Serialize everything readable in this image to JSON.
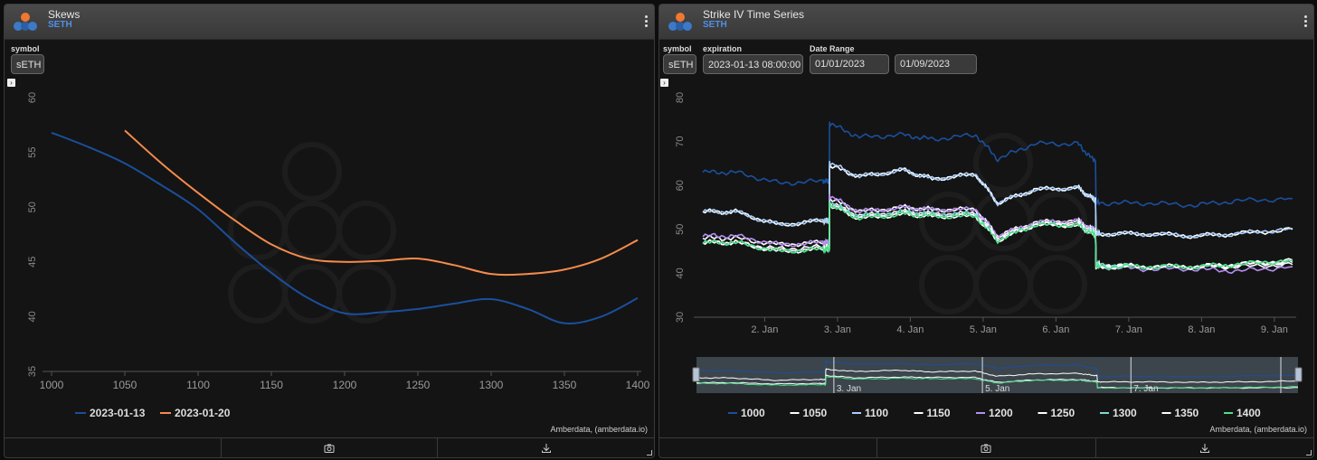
{
  "left_panel": {
    "title": "Skews",
    "subtitle": "SETH",
    "symbol_label": "symbol",
    "symbol_value": "sETH",
    "credit": "Amberdata, (amberdata.io)"
  },
  "right_panel": {
    "title": "Strike IV Time Series",
    "subtitle": "SETH",
    "symbol_label": "symbol",
    "symbol_value": "sETH",
    "expiration_label": "expiration",
    "expiration_value": "2023-01-13 08:00:00",
    "date_range_label": "Date Range",
    "date_from": "01/01/2023",
    "date_to": "01/09/2023",
    "credit": "Amberdata, (amberdata.io)",
    "navigator_labels": [
      "3. Jan",
      "5. Jan",
      "7. Jan"
    ]
  },
  "icons": {
    "logo": "amberdata-logo-icon",
    "menu": "kebab-menu-icon",
    "camera": "camera-icon",
    "download": "download-icon",
    "expander": "chevron-right-icon"
  },
  "colors": {
    "blue_series": "#1b4f9c",
    "orange_series": "#f58b4c",
    "header_subtitle": "#4f8fe8"
  },
  "chart_data": [
    {
      "type": "line",
      "title": "",
      "xlabel": "",
      "ylabel": "",
      "xlim": [
        1000,
        1400
      ],
      "ylim": [
        35,
        60
      ],
      "x_ticks": [
        1000,
        1050,
        1100,
        1150,
        1200,
        1250,
        1300,
        1350,
        1400
      ],
      "y_ticks": [
        35,
        40,
        45,
        50,
        55,
        60
      ],
      "grid": false,
      "legend": "bottom",
      "series": [
        {
          "name": "2023-01-13",
          "color": "#1b4f9c",
          "x": [
            1000,
            1025,
            1050,
            1075,
            1100,
            1125,
            1150,
            1175,
            1200,
            1225,
            1250,
            1275,
            1300,
            1325,
            1350,
            1375,
            1400
          ],
          "y": [
            56.8,
            55.5,
            54.0,
            52.0,
            49.8,
            46.8,
            44.0,
            41.7,
            40.3,
            40.4,
            40.7,
            41.2,
            41.6,
            40.7,
            39.4,
            40.0,
            41.7
          ]
        },
        {
          "name": "2023-01-20",
          "color": "#f58b4c",
          "x": [
            1050,
            1075,
            1100,
            1125,
            1150,
            1175,
            1200,
            1225,
            1250,
            1275,
            1300,
            1325,
            1350,
            1375,
            1400
          ],
          "y": [
            57.0,
            54.0,
            51.3,
            48.8,
            46.6,
            45.3,
            45.0,
            45.1,
            45.3,
            44.7,
            43.9,
            43.9,
            44.3,
            45.3,
            47.0
          ]
        }
      ]
    },
    {
      "type": "line",
      "title": "",
      "xlabel": "",
      "ylabel": "",
      "xlim": [
        1.15,
        9.25
      ],
      "ylim": [
        30,
        80
      ],
      "x_ticks": [
        2,
        3,
        4,
        5,
        6,
        7,
        8,
        9
      ],
      "x_tick_labels": [
        "2. Jan",
        "3. Jan",
        "4. Jan",
        "5. Jan",
        "6. Jan",
        "7. Jan",
        "8. Jan",
        "9. Jan"
      ],
      "y_ticks": [
        30,
        40,
        50,
        60,
        70,
        80
      ],
      "grid": false,
      "legend": "bottom",
      "series": [
        {
          "name": "1000",
          "color": "#1b4f9c",
          "x": [
            1.15,
            1.6,
            2.2,
            2.8,
            2.88,
            2.9,
            3.3,
            3.9,
            4.3,
            4.9,
            5.2,
            5.7,
            6.3,
            6.5,
            6.6,
            7.2,
            7.9,
            8.5,
            9.25
          ],
          "y": [
            63,
            63,
            60.5,
            61,
            61,
            74,
            71,
            71.5,
            70.5,
            71.5,
            66,
            69.5,
            69.5,
            66,
            56,
            56,
            55.5,
            56.5,
            57
          ]
        },
        {
          "name": "1050",
          "color": "#ffffff",
          "x": [
            1.15,
            1.6,
            2.2,
            2.8,
            2.88,
            2.9,
            3.3,
            3.9,
            4.3,
            4.9,
            5.2,
            5.7,
            6.3,
            6.5,
            6.6,
            7.2,
            7.9,
            8.5,
            9.25
          ],
          "y": [
            54,
            54,
            51,
            52,
            52,
            64.5,
            62,
            63.5,
            61.5,
            62.5,
            56,
            59,
            59.5,
            57,
            49,
            49,
            48.5,
            49,
            50
          ]
        },
        {
          "name": "1100",
          "color": "#a8cfff",
          "x": [
            1.15,
            1.6,
            2.2,
            2.8,
            2.88,
            2.9,
            3.3,
            3.9,
            4.3,
            4.9,
            5.2,
            5.7,
            6.3,
            6.5,
            6.6,
            7.2,
            7.9,
            8.5,
            9.25
          ],
          "y": [
            54,
            54,
            51,
            52,
            52,
            65,
            62,
            63.5,
            61.5,
            62.5,
            56,
            59,
            59.5,
            57,
            49,
            49,
            48.5,
            49,
            50.2
          ]
        },
        {
          "name": "1150",
          "color": "#ffffff",
          "x": [
            1.15,
            1.6,
            2.2,
            2.8,
            2.88,
            2.9,
            3.3,
            3.9,
            4.3,
            4.9,
            5.2,
            5.7,
            6.3,
            6.5,
            6.6,
            7.2,
            7.9,
            8.5,
            9.25
          ],
          "y": [
            48,
            48,
            46.5,
            47,
            47,
            57,
            54,
            55,
            54.5,
            54.5,
            48.5,
            51.5,
            52,
            50,
            42,
            41.5,
            41.5,
            41.5,
            42
          ]
        },
        {
          "name": "1200",
          "color": "#b68ef2",
          "x": [
            1.15,
            1.6,
            2.2,
            2.8,
            2.88,
            2.9,
            3.3,
            3.9,
            4.3,
            4.9,
            5.2,
            5.7,
            6.3,
            6.5,
            6.6,
            7.2,
            7.9,
            8.5,
            9.25
          ],
          "y": [
            48.5,
            48.5,
            46.5,
            47,
            47,
            57.5,
            54,
            55,
            54.5,
            54.5,
            48.5,
            51.5,
            52,
            50,
            41.5,
            41,
            41,
            40.5,
            41.5
          ]
        },
        {
          "name": "1250",
          "color": "#ffffff",
          "x": [
            1.15,
            1.6,
            2.2,
            2.8,
            2.88,
            2.9,
            3.3,
            3.9,
            4.3,
            4.9,
            5.2,
            5.7,
            6.3,
            6.5,
            6.6,
            7.2,
            7.9,
            8.5,
            9.25
          ],
          "y": [
            47,
            47,
            45.5,
            46,
            46,
            56,
            53,
            54,
            53.5,
            53.5,
            48,
            51,
            51.5,
            49.5,
            42,
            41.5,
            41.5,
            42,
            42.5
          ]
        },
        {
          "name": "1300",
          "color": "#7fd7d7",
          "x": [
            1.15,
            1.6,
            2.2,
            2.8,
            2.88,
            2.9,
            3.3,
            3.9,
            4.3,
            4.9,
            5.2,
            5.7,
            6.3,
            6.5,
            6.6,
            7.2,
            7.9,
            8.5,
            9.25
          ],
          "y": [
            47,
            47,
            45,
            45.5,
            45.5,
            56,
            53,
            54,
            53.5,
            53.5,
            47.5,
            51,
            51,
            49.5,
            42,
            41.5,
            41.5,
            42,
            43
          ]
        },
        {
          "name": "1350",
          "color": "#ffffff",
          "x": [
            1.15,
            1.6,
            2.2,
            2.8,
            2.88,
            2.9,
            3.3,
            3.9,
            4.3,
            4.9,
            5.2,
            5.7,
            6.3,
            6.5,
            6.6,
            7.2,
            7.9,
            8.5,
            9.25
          ],
          "y": [
            47,
            47,
            45,
            45.5,
            45.5,
            55.5,
            52.5,
            53.5,
            53,
            53,
            47.5,
            51,
            51,
            49,
            41.5,
            41.5,
            41.5,
            42,
            43
          ]
        },
        {
          "name": "1400",
          "color": "#4fe08a",
          "x": [
            1.15,
            1.6,
            2.2,
            2.8,
            2.88,
            2.9,
            3.3,
            3.9,
            4.3,
            4.9,
            5.2,
            5.7,
            6.3,
            6.5,
            6.6,
            7.2,
            7.9,
            8.5,
            9.25
          ],
          "y": [
            47,
            47,
            45,
            45.5,
            45.5,
            55.5,
            52.5,
            53.5,
            53,
            53,
            47.5,
            51,
            51,
            49,
            41.5,
            41.5,
            41.5,
            42,
            43
          ]
        }
      ]
    }
  ]
}
